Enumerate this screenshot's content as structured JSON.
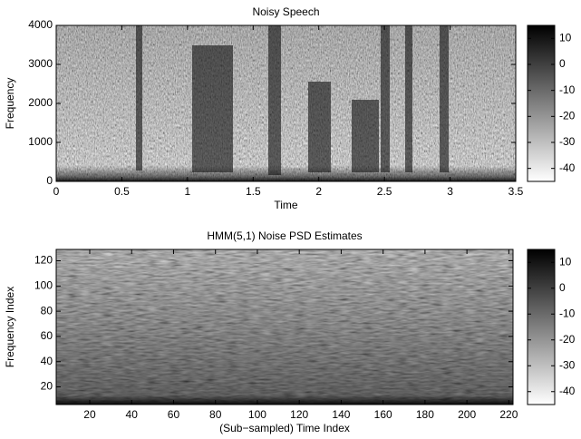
{
  "chart_data": [
    {
      "type": "heatmap",
      "title": "Noisy Speech",
      "x_label": "Time",
      "y_label": "Frequency",
      "xlim": [
        0,
        3.5
      ],
      "xticks": [
        0,
        0.5,
        1,
        1.5,
        2,
        2.5,
        3,
        3.5
      ],
      "ylim": [
        0,
        4000
      ],
      "yticks": [
        0,
        1000,
        2000,
        3000,
        4000
      ],
      "clim": [
        -45,
        15
      ],
      "colorbar_ticks": [
        -40,
        -30,
        -20,
        -10,
        0,
        10
      ],
      "colormap": "gray"
    },
    {
      "type": "heatmap",
      "title": "HMM(5,1) Noise PSD Estimates",
      "x_label": "(Sub−sampled) Time Index",
      "y_label": "Frequency Index",
      "xlim": [
        4,
        222
      ],
      "xticks": [
        20,
        40,
        60,
        80,
        100,
        120,
        140,
        160,
        180,
        200,
        220
      ],
      "ylim": [
        6,
        129
      ],
      "yticks": [
        20,
        40,
        60,
        80,
        100,
        120
      ],
      "clim": [
        -45,
        15
      ],
      "colorbar_ticks": [
        -40,
        -30,
        -20,
        -10,
        0,
        10
      ],
      "colormap": "gray"
    }
  ]
}
